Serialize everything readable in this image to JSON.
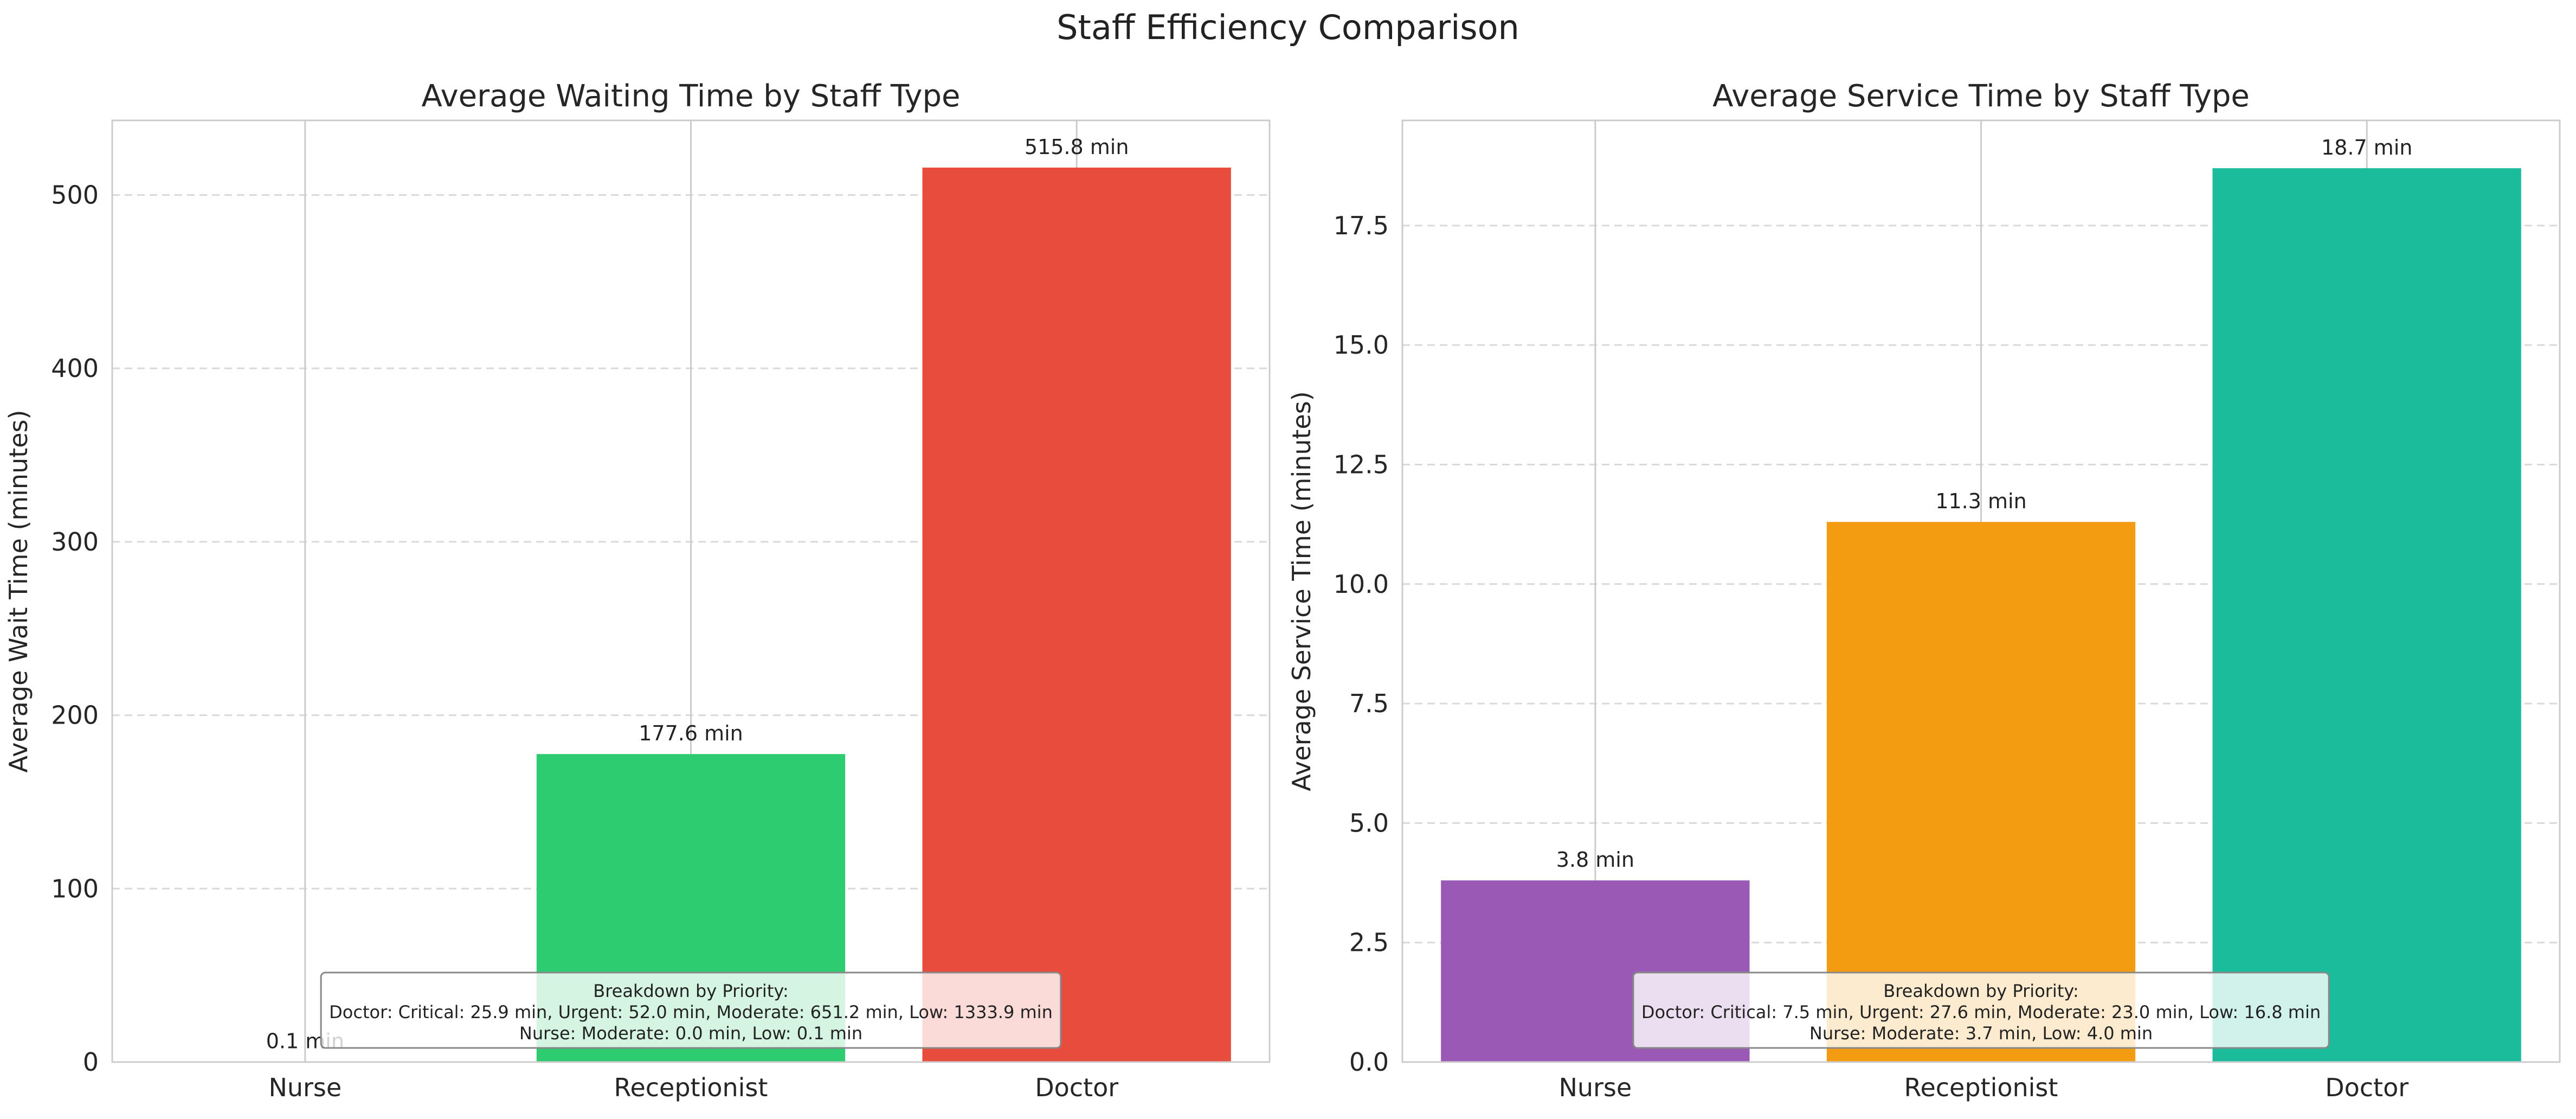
{
  "figure": {
    "title": "Staff Efficiency Comparison"
  },
  "chart_data": [
    {
      "type": "bar",
      "title": "Average Waiting Time by Staff Type",
      "xlabel": "",
      "ylabel": "Average Wait Time (minutes)",
      "categories": [
        "Nurse",
        "Receptionist",
        "Doctor"
      ],
      "values": [
        0.1,
        177.6,
        515.8
      ],
      "value_labels": [
        "0.1 min",
        "177.6 min",
        "515.8 min"
      ],
      "colors": [
        "#9b59b6",
        "#2ecc71",
        "#e74c3c"
      ],
      "ylim": [
        0,
        543
      ],
      "yticks": [
        0,
        100,
        200,
        300,
        400,
        500
      ],
      "ytick_labels": [
        "0",
        "100",
        "200",
        "300",
        "400",
        "500"
      ],
      "grid": true,
      "annotation": {
        "lines": [
          "Breakdown by Priority:",
          "Doctor: Critical: 25.9 min, Urgent: 52.0 min, Moderate: 651.2 min, Low: 1333.9 min",
          "Nurse: Moderate: 0.0 min, Low: 0.1 min"
        ],
        "placement": "bottom-center"
      }
    },
    {
      "type": "bar",
      "title": "Average Service Time by Staff Type",
      "xlabel": "",
      "ylabel": "Average Service Time (minutes)",
      "categories": [
        "Nurse",
        "Receptionist",
        "Doctor"
      ],
      "values": [
        3.8,
        11.3,
        18.7
      ],
      "value_labels": [
        "3.8 min",
        "11.3 min",
        "18.7 min"
      ],
      "colors": [
        "#9b59b6",
        "#f39c12",
        "#1abc9c"
      ],
      "ylim": [
        0,
        19.7
      ],
      "yticks": [
        0,
        2.5,
        5,
        7.5,
        10,
        12.5,
        15,
        17.5
      ],
      "ytick_labels": [
        "0.0",
        "2.5",
        "5.0",
        "7.5",
        "10.0",
        "12.5",
        "15.0",
        "17.5"
      ],
      "grid": true,
      "annotation": {
        "lines": [
          "Breakdown by Priority:",
          "Doctor: Critical: 7.5 min, Urgent: 27.6 min, Moderate: 23.0 min, Low: 16.8 min",
          "Nurse: Moderate: 3.7 min, Low: 4.0 min"
        ],
        "placement": "bottom-center"
      }
    }
  ]
}
